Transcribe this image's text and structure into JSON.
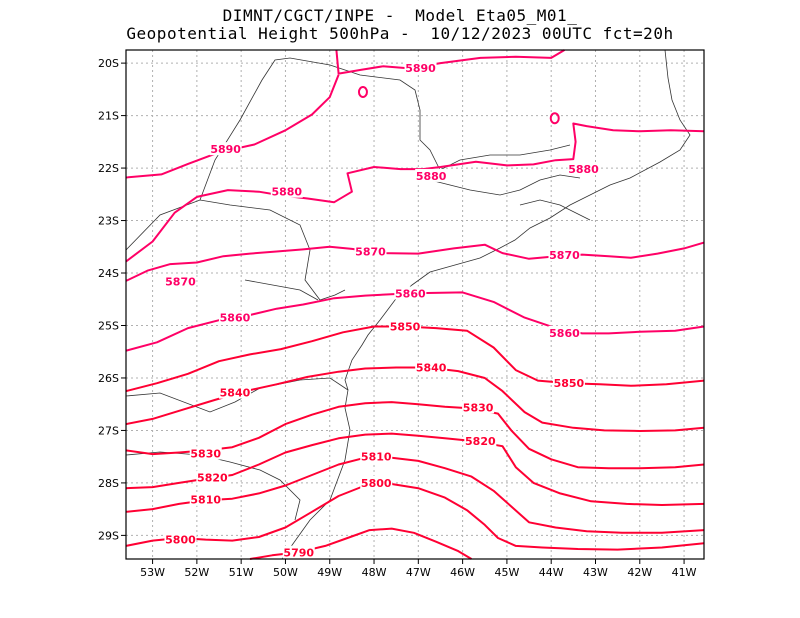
{
  "chart_data": {
    "type": "contour",
    "title": "DIMNT/CGCT/INPE -  Model Eta05_M01_",
    "subtitle": "Geopotential Height 500hPa -  10/12/2023 00UTC fct=20h",
    "xlim": [
      -53.6,
      -40.55
    ],
    "ylim": [
      -29.45,
      -19.75
    ],
    "xticks": [
      -53,
      -52,
      -51,
      -50,
      -49,
      -48,
      -47,
      -46,
      -45,
      -44,
      -43,
      -42,
      -41
    ],
    "xtick_labels": [
      "53W",
      "52W",
      "51W",
      "50W",
      "49W",
      "48W",
      "47W",
      "46W",
      "45W",
      "44W",
      "43W",
      "42W",
      "41W"
    ],
    "yticks": [
      -20,
      -21,
      -22,
      -23,
      -24,
      -25,
      -26,
      -27,
      -28,
      -29
    ],
    "ytick_labels": [
      "20S",
      "21S",
      "22S",
      "23S",
      "24S",
      "25S",
      "26S",
      "27S",
      "28S",
      "29S"
    ],
    "grid": true,
    "contour_interval": 10,
    "levels": [
      {
        "value": 5890,
        "label": "5890",
        "color": "#ff0066",
        "labels": [
          {
            "lon": -46.95,
            "lat": -20.09
          },
          {
            "lon": -51.35,
            "lat": -21.64
          }
        ],
        "points": [
          [
            -48.85,
            -19.75
          ],
          [
            -48.8,
            -20.2
          ],
          [
            -48.3,
            -20.13
          ],
          [
            -47.8,
            -20.06
          ],
          [
            -47.2,
            -20.1
          ],
          [
            -46.5,
            -20.0
          ],
          [
            -45.6,
            -19.9
          ],
          [
            -44.8,
            -19.88
          ],
          [
            -44.0,
            -19.9
          ],
          [
            -43.7,
            -19.75
          ]
        ]
      },
      {
        "value": 5890,
        "label": "",
        "color": "#ff0066",
        "points": [
          [
            -53.6,
            -22.18
          ],
          [
            -52.8,
            -22.12
          ],
          [
            -52.2,
            -21.92
          ],
          [
            -51.5,
            -21.7
          ],
          [
            -50.7,
            -21.55
          ],
          [
            -50.0,
            -21.28
          ],
          [
            -49.4,
            -20.98
          ],
          [
            -49.0,
            -20.65
          ],
          [
            -48.8,
            -20.22
          ]
        ]
      },
      {
        "value": 5880,
        "label": "5880",
        "color": "#ff0066",
        "labels": [
          {
            "lon": -49.97,
            "lat": -22.45
          },
          {
            "lon": -46.71,
            "lat": -22.15
          },
          {
            "lon": -43.27,
            "lat": -22.02
          }
        ],
        "points": [
          [
            -53.6,
            -23.78
          ],
          [
            -53.0,
            -23.4
          ],
          [
            -52.5,
            -22.85
          ],
          [
            -52.0,
            -22.55
          ],
          [
            -51.3,
            -22.42
          ],
          [
            -50.6,
            -22.45
          ],
          [
            -50.1,
            -22.52
          ],
          [
            -49.5,
            -22.58
          ],
          [
            -48.9,
            -22.65
          ],
          [
            -48.5,
            -22.45
          ],
          [
            -48.6,
            -22.1
          ],
          [
            -48.0,
            -21.98
          ],
          [
            -47.4,
            -22.02
          ],
          [
            -46.9,
            -22.02
          ],
          [
            -46.5,
            -21.98
          ],
          [
            -45.7,
            -21.88
          ],
          [
            -45.0,
            -21.95
          ],
          [
            -44.4,
            -21.93
          ],
          [
            -43.9,
            -21.85
          ],
          [
            -43.5,
            -21.83
          ],
          [
            -43.45,
            -21.5
          ],
          [
            -43.5,
            -21.15
          ],
          [
            -43.2,
            -21.2
          ],
          [
            -42.6,
            -21.28
          ],
          [
            -42.0,
            -21.3
          ],
          [
            -41.3,
            -21.28
          ],
          [
            -40.55,
            -21.3
          ]
        ]
      },
      {
        "value": 5870,
        "label": "5870",
        "color": "#ff0066",
        "labels": [
          {
            "lon": -52.37,
            "lat": -24.16
          },
          {
            "lon": -48.08,
            "lat": -23.59
          },
          {
            "lon": -43.7,
            "lat": -23.66
          }
        ],
        "points": [
          [
            -53.6,
            -24.15
          ],
          [
            -53.1,
            -23.95
          ],
          [
            -52.6,
            -23.83
          ],
          [
            -52.0,
            -23.8
          ],
          [
            -51.4,
            -23.68
          ],
          [
            -50.8,
            -23.63
          ],
          [
            -50.2,
            -23.59
          ],
          [
            -49.6,
            -23.55
          ],
          [
            -49.0,
            -23.5
          ],
          [
            -48.5,
            -23.54
          ],
          [
            -47.8,
            -23.62
          ],
          [
            -47.0,
            -23.63
          ],
          [
            -46.2,
            -23.53
          ],
          [
            -45.5,
            -23.46
          ],
          [
            -45.1,
            -23.62
          ],
          [
            -44.5,
            -23.73
          ],
          [
            -44.0,
            -23.69
          ],
          [
            -43.3,
            -23.65
          ],
          [
            -42.7,
            -23.68
          ],
          [
            -42.2,
            -23.71
          ],
          [
            -41.6,
            -23.63
          ],
          [
            -41.0,
            -23.53
          ],
          [
            -40.55,
            -23.42
          ]
        ]
      },
      {
        "value": 5860,
        "label": "5860",
        "color": "#ff0066",
        "labels": [
          {
            "lon": -51.14,
            "lat": -24.85
          },
          {
            "lon": -47.18,
            "lat": -24.39
          },
          {
            "lon": -43.7,
            "lat": -25.14
          }
        ],
        "points": [
          [
            -53.6,
            -25.48
          ],
          [
            -52.9,
            -25.32
          ],
          [
            -52.2,
            -25.05
          ],
          [
            -51.5,
            -24.9
          ],
          [
            -50.8,
            -24.8
          ],
          [
            -50.2,
            -24.68
          ],
          [
            -49.6,
            -24.6
          ],
          [
            -48.9,
            -24.48
          ],
          [
            -48.2,
            -24.43
          ],
          [
            -47.5,
            -24.4
          ],
          [
            -46.8,
            -24.38
          ],
          [
            -46.0,
            -24.37
          ],
          [
            -45.3,
            -24.55
          ],
          [
            -44.6,
            -24.85
          ],
          [
            -43.9,
            -25.05
          ],
          [
            -43.3,
            -25.15
          ],
          [
            -42.7,
            -25.15
          ],
          [
            -42.0,
            -25.12
          ],
          [
            -41.2,
            -25.1
          ],
          [
            -40.55,
            -25.02
          ]
        ]
      },
      {
        "value": 5850,
        "label": "5850",
        "color": "#ff0033",
        "labels": [
          {
            "lon": -47.3,
            "lat": -25.02
          },
          {
            "lon": -43.6,
            "lat": -26.1
          }
        ],
        "points": [
          [
            -53.6,
            -26.25
          ],
          [
            -52.9,
            -26.1
          ],
          [
            -52.2,
            -25.92
          ],
          [
            -51.5,
            -25.68
          ],
          [
            -50.8,
            -25.55
          ],
          [
            -50.1,
            -25.45
          ],
          [
            -49.4,
            -25.3
          ],
          [
            -48.7,
            -25.13
          ],
          [
            -48.0,
            -25.02
          ],
          [
            -47.3,
            -25.02
          ],
          [
            -46.6,
            -25.05
          ],
          [
            -45.9,
            -25.1
          ],
          [
            -45.3,
            -25.42
          ],
          [
            -44.8,
            -25.85
          ],
          [
            -44.3,
            -26.05
          ],
          [
            -43.6,
            -26.1
          ],
          [
            -42.9,
            -26.12
          ],
          [
            -42.2,
            -26.15
          ],
          [
            -41.4,
            -26.12
          ],
          [
            -40.55,
            -26.05
          ]
        ]
      },
      {
        "value": 5840,
        "label": "5840",
        "color": "#ff0033",
        "labels": [
          {
            "lon": -51.14,
            "lat": -26.28
          },
          {
            "lon": -46.71,
            "lat": -25.8
          }
        ],
        "points": [
          [
            -53.6,
            -26.88
          ],
          [
            -53.0,
            -26.78
          ],
          [
            -52.3,
            -26.6
          ],
          [
            -51.6,
            -26.42
          ],
          [
            -50.9,
            -26.25
          ],
          [
            -50.2,
            -26.12
          ],
          [
            -49.5,
            -25.98
          ],
          [
            -48.8,
            -25.88
          ],
          [
            -48.2,
            -25.82
          ],
          [
            -47.5,
            -25.8
          ],
          [
            -46.8,
            -25.8
          ],
          [
            -46.1,
            -25.87
          ],
          [
            -45.5,
            -26.0
          ],
          [
            -45.1,
            -26.25
          ],
          [
            -44.6,
            -26.65
          ],
          [
            -44.2,
            -26.85
          ],
          [
            -43.5,
            -26.95
          ],
          [
            -42.8,
            -27.0
          ],
          [
            -42.0,
            -27.01
          ],
          [
            -41.2,
            -27.0
          ],
          [
            -40.55,
            -26.95
          ]
        ]
      },
      {
        "value": 5830,
        "label": "5830",
        "color": "#ff0033",
        "labels": [
          {
            "lon": -51.8,
            "lat": -27.44
          },
          {
            "lon": -45.65,
            "lat": -26.56
          }
        ],
        "points": [
          [
            -53.6,
            -27.38
          ],
          [
            -53.0,
            -27.45
          ],
          [
            -52.4,
            -27.42
          ],
          [
            -51.8,
            -27.38
          ],
          [
            -51.2,
            -27.32
          ],
          [
            -50.6,
            -27.14
          ],
          [
            -50.0,
            -26.88
          ],
          [
            -49.4,
            -26.7
          ],
          [
            -48.8,
            -26.55
          ],
          [
            -48.2,
            -26.48
          ],
          [
            -47.6,
            -26.46
          ],
          [
            -47.0,
            -26.5
          ],
          [
            -46.4,
            -26.55
          ],
          [
            -45.8,
            -26.58
          ],
          [
            -45.2,
            -26.68
          ],
          [
            -44.9,
            -27.0
          ],
          [
            -44.5,
            -27.35
          ],
          [
            -44.0,
            -27.55
          ],
          [
            -43.4,
            -27.7
          ],
          [
            -42.7,
            -27.72
          ],
          [
            -42.0,
            -27.72
          ],
          [
            -41.2,
            -27.7
          ],
          [
            -40.55,
            -27.65
          ]
        ]
      },
      {
        "value": 5820,
        "label": "5820",
        "color": "#ff0033",
        "labels": [
          {
            "lon": -51.65,
            "lat": -27.9
          },
          {
            "lon": -45.6,
            "lat": -27.2
          }
        ],
        "points": [
          [
            -53.6,
            -28.1
          ],
          [
            -53.0,
            -28.08
          ],
          [
            -52.4,
            -28.0
          ],
          [
            -51.8,
            -27.92
          ],
          [
            -51.2,
            -27.85
          ],
          [
            -50.6,
            -27.65
          ],
          [
            -50.0,
            -27.42
          ],
          [
            -49.4,
            -27.28
          ],
          [
            -48.8,
            -27.15
          ],
          [
            -48.2,
            -27.08
          ],
          [
            -47.6,
            -27.06
          ],
          [
            -47.0,
            -27.1
          ],
          [
            -46.4,
            -27.15
          ],
          [
            -45.8,
            -27.2
          ],
          [
            -45.1,
            -27.3
          ],
          [
            -44.8,
            -27.7
          ],
          [
            -44.4,
            -28.0
          ],
          [
            -43.8,
            -28.2
          ],
          [
            -43.1,
            -28.35
          ],
          [
            -42.3,
            -28.4
          ],
          [
            -41.5,
            -28.42
          ],
          [
            -40.55,
            -28.4
          ]
        ]
      },
      {
        "value": 5810,
        "label": "5810",
        "color": "#ff0033",
        "labels": [
          {
            "lon": -51.8,
            "lat": -28.32
          },
          {
            "lon": -47.95,
            "lat": -27.5
          }
        ],
        "points": [
          [
            -53.6,
            -28.55
          ],
          [
            -53.0,
            -28.5
          ],
          [
            -52.4,
            -28.4
          ],
          [
            -51.8,
            -28.33
          ],
          [
            -51.2,
            -28.3
          ],
          [
            -50.6,
            -28.2
          ],
          [
            -50.0,
            -28.05
          ],
          [
            -49.4,
            -27.85
          ],
          [
            -48.8,
            -27.65
          ],
          [
            -48.2,
            -27.52
          ],
          [
            -47.6,
            -27.52
          ],
          [
            -47.0,
            -27.58
          ],
          [
            -46.4,
            -27.72
          ],
          [
            -45.8,
            -27.88
          ],
          [
            -45.3,
            -28.15
          ],
          [
            -44.9,
            -28.45
          ],
          [
            -44.5,
            -28.75
          ],
          [
            -43.9,
            -28.85
          ],
          [
            -43.2,
            -28.92
          ],
          [
            -42.4,
            -28.95
          ],
          [
            -41.5,
            -28.95
          ],
          [
            -40.55,
            -28.9
          ]
        ]
      },
      {
        "value": 5800,
        "label": "5800",
        "color": "#ff0033",
        "labels": [
          {
            "lon": -52.37,
            "lat": -29.08
          },
          {
            "lon": -47.95,
            "lat": -28.0
          }
        ],
        "points": [
          [
            -53.6,
            -29.2
          ],
          [
            -53.0,
            -29.1
          ],
          [
            -52.4,
            -29.05
          ],
          [
            -51.8,
            -29.08
          ],
          [
            -51.2,
            -29.1
          ],
          [
            -50.6,
            -29.03
          ],
          [
            -50.0,
            -28.85
          ],
          [
            -49.4,
            -28.55
          ],
          [
            -48.8,
            -28.25
          ],
          [
            -48.2,
            -28.05
          ],
          [
            -47.6,
            -28.02
          ],
          [
            -47.0,
            -28.1
          ],
          [
            -46.4,
            -28.28
          ],
          [
            -45.9,
            -28.52
          ],
          [
            -45.5,
            -28.8
          ],
          [
            -45.2,
            -29.05
          ],
          [
            -44.8,
            -29.2
          ],
          [
            -44.2,
            -29.23
          ],
          [
            -43.4,
            -29.26
          ],
          [
            -42.5,
            -29.27
          ],
          [
            -41.5,
            -29.23
          ],
          [
            -40.55,
            -29.15
          ]
        ]
      },
      {
        "value": 5790,
        "label": "5790",
        "color": "#ff0033",
        "labels": [
          {
            "lon": -49.7,
            "lat": -29.33
          }
        ],
        "points": [
          [
            -50.8,
            -29.45
          ],
          [
            -50.3,
            -29.38
          ],
          [
            -49.7,
            -29.32
          ],
          [
            -49.1,
            -29.2
          ],
          [
            -48.6,
            -29.05
          ],
          [
            -48.1,
            -28.9
          ],
          [
            -47.6,
            -28.87
          ],
          [
            -47.1,
            -28.95
          ],
          [
            -46.6,
            -29.12
          ],
          [
            -46.1,
            -29.3
          ],
          [
            -45.8,
            -29.45
          ]
        ]
      }
    ],
    "closed_contours": [
      {
        "value": 5890,
        "color": "#ff0066",
        "center": [
          -48.25,
          -20.55
        ]
      },
      {
        "value": 5890,
        "color": "#ff0066",
        "center": [
          -43.92,
          -21.05
        ]
      }
    ]
  }
}
